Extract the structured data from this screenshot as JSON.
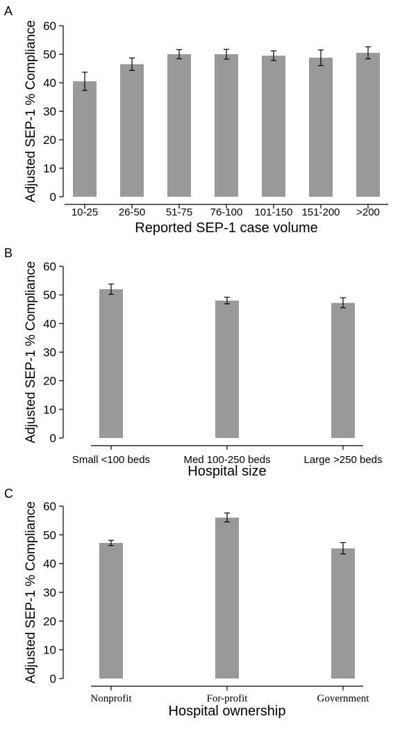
{
  "chart_data": [
    {
      "panel": "A",
      "type": "bar",
      "xlabel": "Reported SEP-1 case volume",
      "ylabel": "Adjusted SEP-1 % Compliance",
      "categories": [
        "10-25",
        "26-50",
        "51-75",
        "76-100",
        "101-150",
        "151-200",
        ">200"
      ],
      "values": [
        40.5,
        46.5,
        50.0,
        50.0,
        49.5,
        48.8,
        50.5
      ],
      "error_low": [
        37.3,
        44.3,
        48.4,
        48.3,
        47.8,
        46.0,
        48.4
      ],
      "error_high": [
        43.7,
        48.7,
        51.6,
        51.7,
        51.2,
        51.5,
        52.6
      ],
      "ylim": [
        0,
        60
      ],
      "yticks": [
        0,
        10,
        20,
        30,
        40,
        50,
        60
      ],
      "bar_color": "#999999"
    },
    {
      "panel": "B",
      "type": "bar",
      "xlabel": "Hospital size",
      "ylabel": "Adjusted SEP-1 % Compliance",
      "categories": [
        "Small <100 beds",
        "Med 100-250 beds",
        "Large >250 beds"
      ],
      "values": [
        52.0,
        48.0,
        47.2
      ],
      "error_low": [
        50.2,
        46.9,
        45.5
      ],
      "error_high": [
        53.8,
        49.2,
        49.0
      ],
      "ylim": [
        0,
        60
      ],
      "yticks": [
        0,
        10,
        20,
        30,
        40,
        50,
        60
      ],
      "bar_color": "#999999"
    },
    {
      "panel": "C",
      "type": "bar",
      "xlabel": "Hospital ownership",
      "ylabel": "Adjusted SEP-1 % Compliance",
      "categories": [
        "Nonprofit",
        "For-profit",
        "Government"
      ],
      "values": [
        47.2,
        56.0,
        45.3
      ],
      "error_low": [
        46.3,
        54.5,
        43.4
      ],
      "error_high": [
        48.1,
        57.6,
        47.3
      ],
      "ylim": [
        0,
        60
      ],
      "yticks": [
        0,
        10,
        20,
        30,
        40,
        50,
        60
      ],
      "bar_color": "#999999"
    }
  ]
}
